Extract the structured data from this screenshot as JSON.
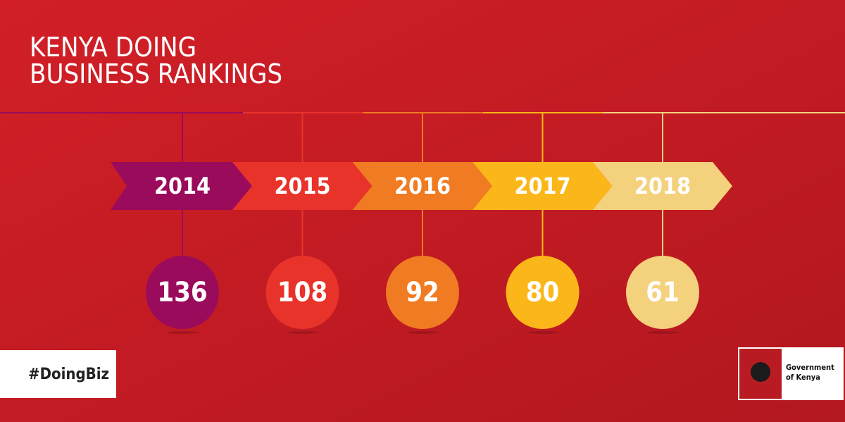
{
  "title_lines": [
    "KENYA DOING",
    "BUSINESS RANKINGS"
  ],
  "timeline": [
    {
      "year": "2014",
      "rank": "136",
      "color": "#9a0b5c"
    },
    {
      "year": "2015",
      "rank": "108",
      "color": "#e8332b"
    },
    {
      "year": "2016",
      "rank": "92",
      "color": "#f07b22"
    },
    {
      "year": "2017",
      "rank": "80",
      "color": "#fbb71a"
    },
    {
      "year": "2018",
      "rank": "61",
      "color": "#f4d17c"
    }
  ],
  "hashtag": "#DoingBiz",
  "logo_text": [
    "Government",
    "of Kenya"
  ]
}
